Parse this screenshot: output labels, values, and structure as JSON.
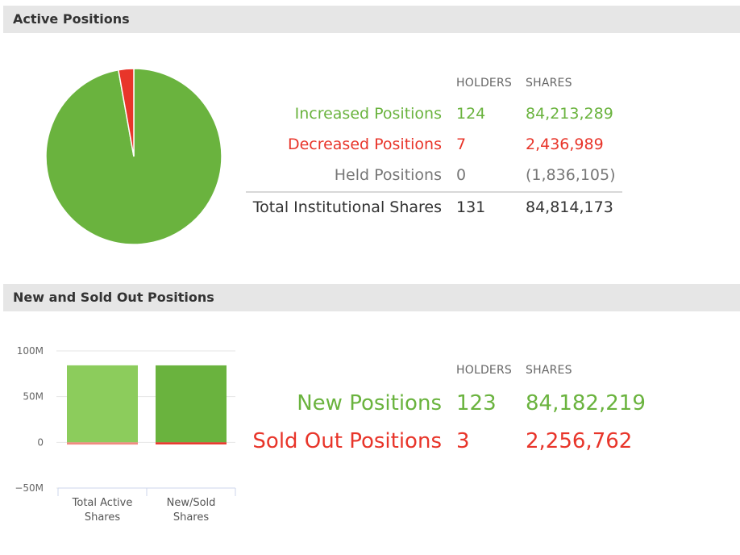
{
  "sections": {
    "active_title": "Active Positions",
    "new_sold_title": "New and Sold Out Positions"
  },
  "active_table": {
    "col_holders": "HOLDERS",
    "col_shares": "SHARES",
    "rows": [
      {
        "label": "Increased Positions",
        "holders": "124",
        "shares": "84,213,289"
      },
      {
        "label": "Decreased Positions",
        "holders": "7",
        "shares": "2,436,989"
      },
      {
        "label": "Held Positions",
        "holders": "0",
        "shares": "(1,836,105)"
      }
    ],
    "total": {
      "label": "Total Institutional Shares",
      "holders": "131",
      "shares": "84,814,173"
    }
  },
  "new_sold_table": {
    "col_holders": "HOLDERS",
    "col_shares": "SHARES",
    "rows": [
      {
        "label": "New Positions",
        "holders": "123",
        "shares": "84,182,219"
      },
      {
        "label": "Sold Out Positions",
        "holders": "3",
        "shares": "2,256,762"
      }
    ]
  },
  "colors": {
    "green": "#6ab33e",
    "light_green": "#8ccc5c",
    "red": "#e8352a",
    "light_red": "#f08a80"
  },
  "chart_data": [
    {
      "type": "pie",
      "labels": [
        "Increased Positions",
        "Decreased Positions"
      ],
      "values": [
        84213289,
        2436989
      ],
      "colors": [
        "#6ab33e",
        "#e8352a"
      ]
    },
    {
      "type": "bar",
      "stacked": true,
      "categories": [
        "Total Active Shares",
        "New/Sold Shares"
      ],
      "category_lines": [
        [
          "Total Active",
          "Shares"
        ],
        [
          "New/Sold",
          "Shares"
        ]
      ],
      "series": [
        {
          "values": [
            84213289,
            84182219
          ],
          "colors": [
            "#8ccc5c",
            "#6ab33e"
          ]
        },
        {
          "values": [
            -2436989,
            -2256762
          ],
          "colors": [
            "#f08a80",
            "#e8352a"
          ]
        }
      ],
      "ylim": [
        -50000000,
        100000000
      ],
      "yticks": [
        100000000,
        50000000,
        0,
        -50000000
      ],
      "ytick_labels": [
        "100M",
        "50M",
        "0",
        "−50M"
      ],
      "grid": true
    }
  ]
}
